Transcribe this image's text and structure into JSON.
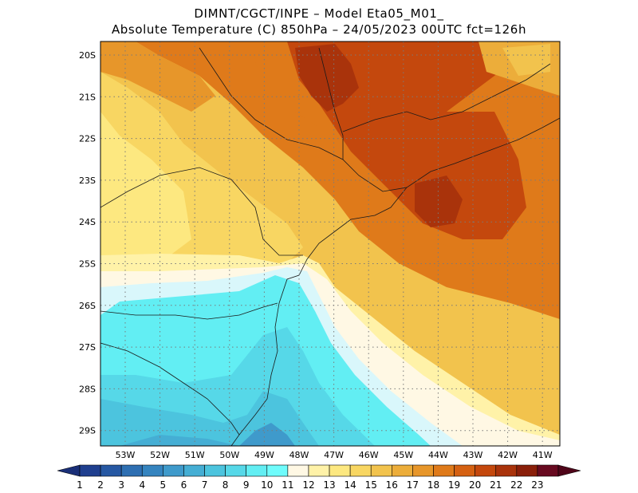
{
  "header": {
    "line1": "DIMNT/CGCT/INPE –  Model Eta05_M01_",
    "line2": "Absolute Temperature (C) 850hPa –  24/05/2023 00UTC fct=126h"
  },
  "axes": {
    "lat_labels": [
      "20S",
      "21S",
      "22S",
      "23S",
      "24S",
      "25S",
      "26S",
      "27S",
      "28S",
      "29S"
    ],
    "lon_labels": [
      "53W",
      "52W",
      "51W",
      "50W",
      "49W",
      "48W",
      "47W",
      "46W",
      "45W",
      "44W",
      "43W",
      "42W",
      "41W"
    ]
  },
  "colorbar": {
    "labels": [
      "1",
      "2",
      "3",
      "4",
      "5",
      "6",
      "7",
      "8",
      "9",
      "10",
      "11",
      "12",
      "13",
      "14",
      "15",
      "16",
      "17",
      "18",
      "19",
      "20",
      "21",
      "22",
      "23"
    ],
    "colors": [
      "#1f3f8f",
      "#2658a3",
      "#2e6fb2",
      "#3584bf",
      "#3f9acb",
      "#45aed4",
      "#4cc4de",
      "#56d8e8",
      "#62eef3",
      "#6ffcfc",
      "#fff8e4",
      "#fff2a8",
      "#fde880",
      "#f8d662",
      "#f2c34d",
      "#ecad3a",
      "#e7962a",
      "#df7a1a",
      "#d56112",
      "#c4480d",
      "#a9330b",
      "#8a1f0a",
      "#680a20"
    ],
    "end_low": "#1a2f78",
    "end_high": "#4f0519"
  }
}
